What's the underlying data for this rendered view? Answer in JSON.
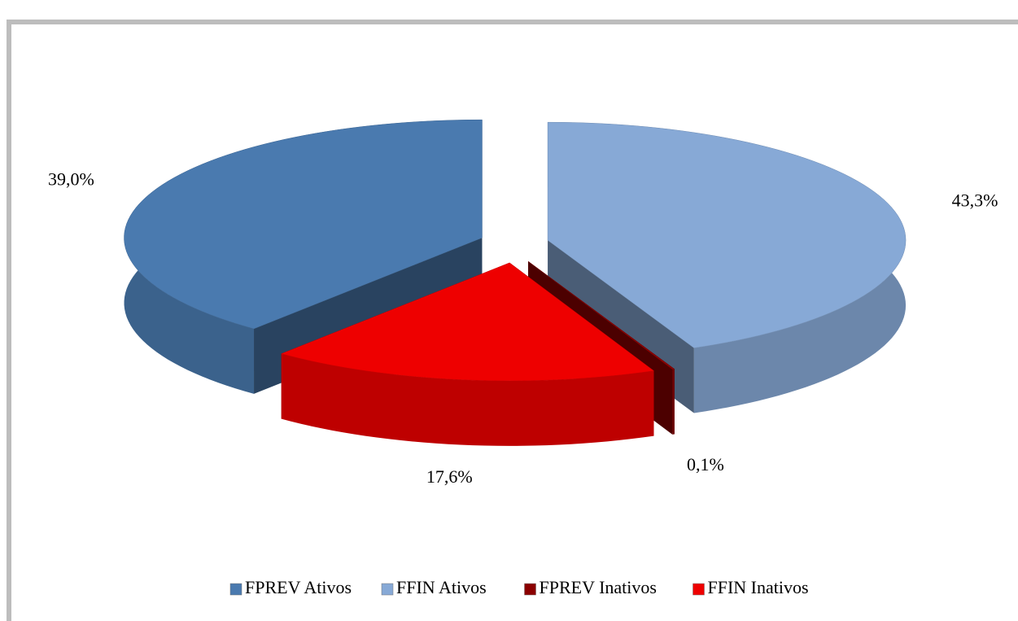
{
  "chart_data": {
    "type": "pie",
    "categories": [
      "FPREV Ativos",
      "FFIN Ativos",
      "FPREV Inativos",
      "FFIN Inativos"
    ],
    "values": [
      39.0,
      43.3,
      0.1,
      17.6
    ],
    "value_labels": [
      "39,0%",
      "43,3%",
      "0,1%",
      "17,6%"
    ],
    "colors": [
      "#4a7aaf",
      "#87a9d6",
      "#8b0000",
      "#ee0000"
    ],
    "legend": "bottom"
  }
}
